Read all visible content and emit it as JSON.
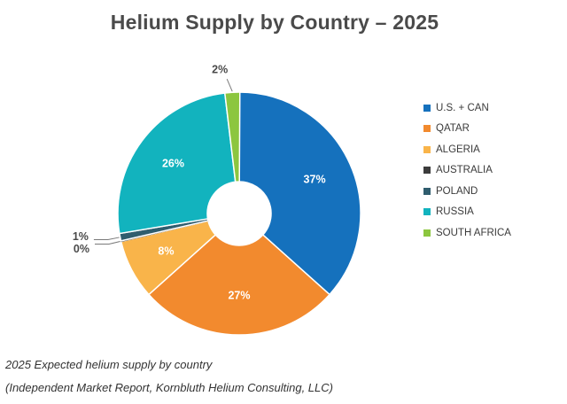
{
  "chart_data": {
    "type": "pie",
    "title": "Helium Supply by Country – 2025",
    "donut": true,
    "categories": [
      "U.S. + CAN",
      "QATAR",
      "ALGERIA",
      "AUSTRALIA",
      "POLAND",
      "RUSSIA",
      "SOUTH AFRICA"
    ],
    "values": [
      37,
      27,
      8,
      0,
      1,
      26,
      2
    ],
    "labels": [
      "37%",
      "27%",
      "8%",
      "0%",
      "1%",
      "26%",
      "2%"
    ],
    "colors": [
      "#1571BD",
      "#F28A2E",
      "#F9B44A",
      "#3C3C3C",
      "#2F5D6E",
      "#12B3BE",
      "#8CC63F"
    ],
    "legend_position": "right"
  },
  "caption": {
    "line1": "2025 Expected helium supply by country",
    "line2": "(Independent Market Report, Kornbluth Helium Consulting, LLC)"
  }
}
